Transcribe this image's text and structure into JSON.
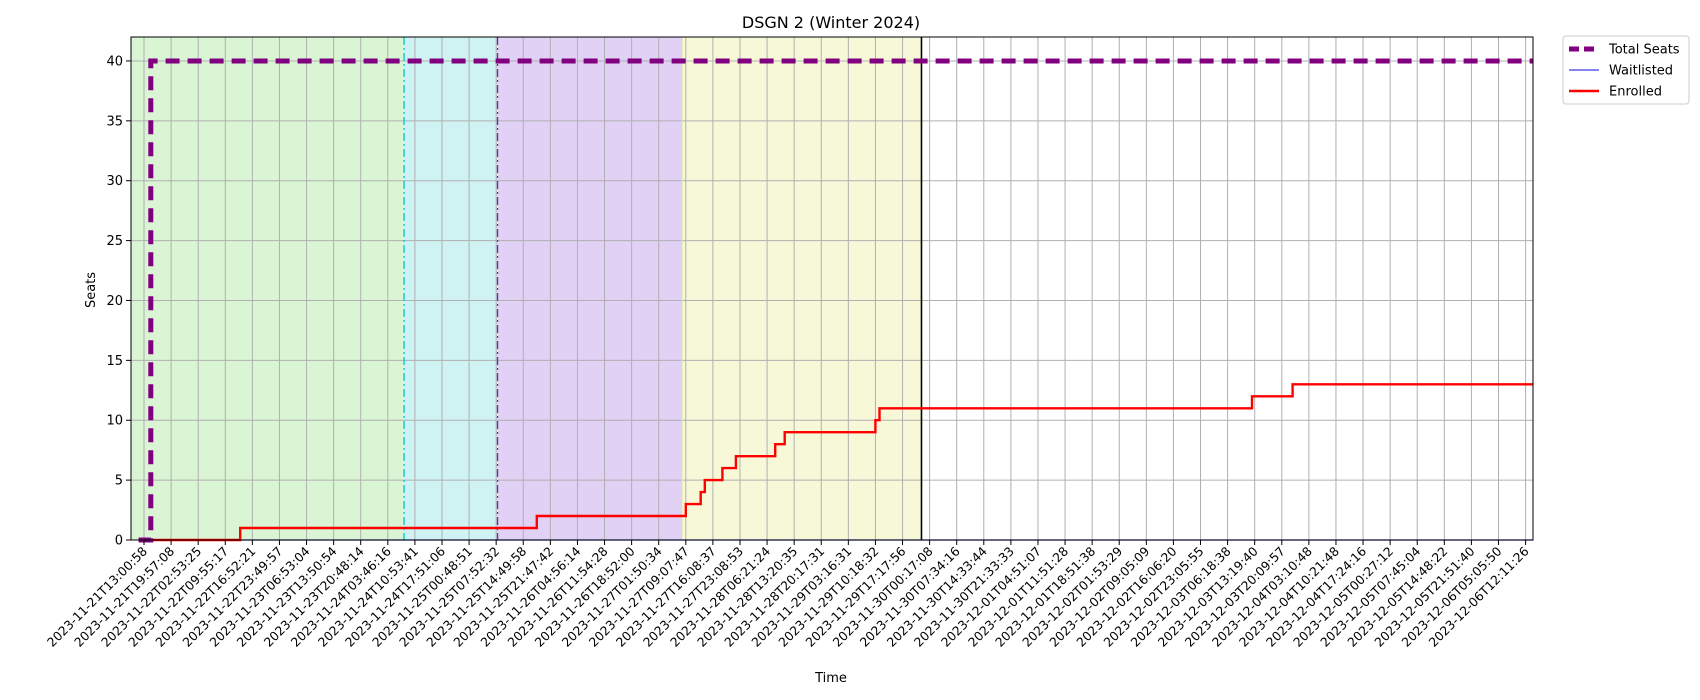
{
  "chart_data": {
    "type": "line",
    "title": "DSGN 2 (Winter 2024)",
    "xlabel": "Time",
    "ylabel": "Seats",
    "ylim": [
      0,
      42
    ],
    "yticks": [
      0,
      5,
      10,
      15,
      20,
      25,
      30,
      35,
      40
    ],
    "grid": true,
    "legend_position": "outside top-right",
    "x_tick_labels": [
      "2023-11-21T13:00:58",
      "2023-11-21T19:57:08",
      "2023-11-22T02:53:25",
      "2023-11-22T09:55:17",
      "2023-11-22T16:52:21",
      "2023-11-22T23:49:57",
      "2023-11-23T06:53:04",
      "2023-11-23T13:50:54",
      "2023-11-23T20:48:14",
      "2023-11-24T03:46:16",
      "2023-11-24T10:53:41",
      "2023-11-24T17:51:06",
      "2023-11-25T00:48:51",
      "2023-11-25T07:52:32",
      "2023-11-25T14:49:58",
      "2023-11-25T21:47:42",
      "2023-11-26T04:56:14",
      "2023-11-26T11:54:28",
      "2023-11-26T18:52:00",
      "2023-11-27T01:50:34",
      "2023-11-27T09:07:47",
      "2023-11-27T16:08:37",
      "2023-11-27T23:08:53",
      "2023-11-28T06:21:24",
      "2023-11-28T13:20:35",
      "2023-11-28T20:17:31",
      "2023-11-29T03:16:31",
      "2023-11-29T10:18:32",
      "2023-11-29T17:17:56",
      "2023-11-30T00:17:08",
      "2023-11-30T07:34:16",
      "2023-11-30T14:33:44",
      "2023-11-30T21:33:33",
      "2023-12-01T04:51:07",
      "2023-12-01T11:51:28",
      "2023-12-01T18:51:38",
      "2023-12-02T01:53:29",
      "2023-12-02T09:05:09",
      "2023-12-02T16:06:20",
      "2023-12-02T23:05:55",
      "2023-12-03T06:18:38",
      "2023-12-03T13:19:40",
      "2023-12-03T20:09:57",
      "2023-12-04T03:10:48",
      "2023-12-04T10:21:48",
      "2023-12-04T17:24:16",
      "2023-12-05T00:27:12",
      "2023-12-05T07:45:04",
      "2023-12-05T14:48:22",
      "2023-12-05T21:51:40",
      "2023-12-06T05:05:50",
      "2023-12-06T12:11:26"
    ],
    "phases": [
      {
        "start_tick": 0,
        "end_tick": 9.6,
        "color": "#d9f5d3"
      },
      {
        "start_tick": 9.6,
        "end_tick": 13.05,
        "color": "#cff3f3"
      },
      {
        "start_tick": 13.05,
        "end_tick": 19.85,
        "color": "#e1d1f5"
      },
      {
        "start_tick": 19.85,
        "end_tick": 28.7,
        "color": "#f7f8d7"
      }
    ],
    "vertical_markers": [
      {
        "tick": 9.6,
        "color": "#00c8c8",
        "style": "dashdot"
      },
      {
        "tick": 13.05,
        "color": "#5b2bb5",
        "style": "dashdot"
      },
      {
        "tick": 19.85,
        "color": "#e6e09a",
        "style": "solid"
      },
      {
        "tick": 28.7,
        "color": "#000000",
        "style": "solid"
      }
    ],
    "series": [
      {
        "name": "Total Seats",
        "color": "#800080",
        "style": "dashed",
        "x": [
          -0.2,
          0.25,
          0.25,
          51.6
        ],
        "y": [
          0,
          0,
          40,
          40
        ]
      },
      {
        "name": "Waitlisted",
        "color": "#3a3ae6",
        "style": "solid",
        "x": [
          -0.2,
          51.6
        ],
        "y": [
          0,
          0
        ]
      },
      {
        "name": "Enrolled",
        "color": "#ff0000",
        "style": "step",
        "x": [
          -0.2,
          3.55,
          3.55,
          14.5,
          14.5,
          20.0,
          20.0,
          20.55,
          20.55,
          20.7,
          20.7,
          20.8,
          20.8,
          21.35,
          21.35,
          21.85,
          21.85,
          23.3,
          23.3,
          23.65,
          23.65,
          27.0,
          27.0,
          27.15,
          27.15,
          40.9,
          40.9,
          42.4,
          42.4,
          51.6
        ],
        "y": [
          0,
          0,
          1,
          1,
          2,
          2,
          3,
          3,
          4,
          4,
          5,
          5,
          5,
          5,
          6,
          6,
          7,
          7,
          8,
          8,
          9,
          9,
          10,
          10,
          11,
          11,
          12,
          12,
          13,
          13
        ]
      }
    ]
  }
}
